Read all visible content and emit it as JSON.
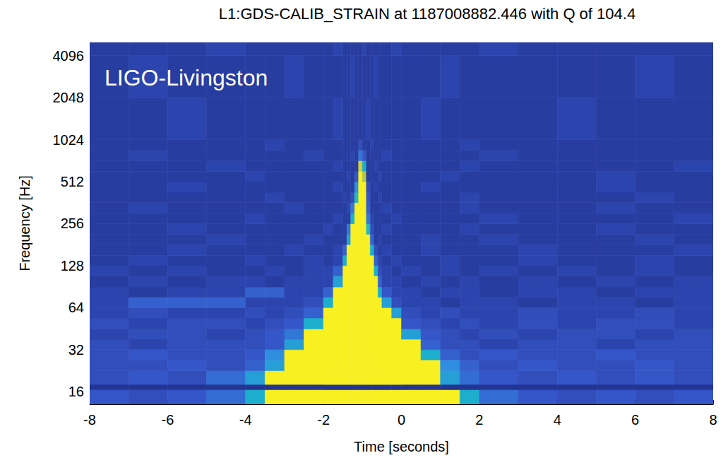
{
  "chart_data": {
    "type": "heatmap",
    "title": "L1:GDS-CALIB_STRAIN at 1187008882.446 with Q of 104.4",
    "annotations": [
      {
        "text": "LIGO-Livingston"
      }
    ],
    "x_label": "Time [seconds]",
    "y_label": "Frequency [Hz]",
    "xlim": [
      -8,
      8
    ],
    "xticks": [
      -8,
      -6,
      -4,
      -2,
      0,
      2,
      4,
      6,
      8
    ],
    "ylim": [
      13,
      5100
    ],
    "yticks": [
      16,
      32,
      64,
      128,
      256,
      512,
      1024,
      2048,
      4096
    ],
    "log": "y",
    "grid": false,
    "color_range": [
      0,
      30
    ],
    "cells": {
      "x_edges": [
        -8,
        -7,
        -6,
        -5,
        -4,
        -3.5,
        -3,
        -2.5,
        -2,
        -1.75,
        -1.5,
        -1.4,
        -1.3,
        -1.2,
        -1.1,
        -1.0,
        -0.9,
        -0.8,
        -0.7,
        -0.6,
        -0.5,
        -0.25,
        0,
        0.5,
        1,
        1.5,
        2,
        3,
        4,
        5,
        6,
        7,
        8
      ],
      "y_edges": [
        13,
        16.5,
        18,
        22.6,
        27,
        32,
        38,
        45,
        54,
        64,
        76,
        90,
        108,
        128,
        152,
        181,
        215,
        256,
        304,
        362,
        430,
        512,
        609,
        724,
        861,
        1024,
        2048,
        4096,
        5100
      ],
      "values": [
        [
          5,
          4,
          5,
          7,
          14,
          30,
          30,
          30,
          30,
          30,
          30,
          30,
          30,
          30,
          30,
          30,
          30,
          30,
          30,
          30,
          30,
          30,
          30,
          30,
          30,
          14,
          7,
          5,
          4,
          5,
          4,
          5
        ],
        [
          1,
          1,
          1,
          1,
          1,
          1,
          1,
          1,
          1,
          1,
          1,
          1,
          1,
          1,
          1,
          1,
          1,
          1,
          1,
          1,
          1,
          1,
          1,
          1,
          1,
          1,
          1,
          1,
          1,
          1,
          1,
          1
        ],
        [
          4,
          5,
          4,
          7,
          12,
          30,
          30,
          30,
          30,
          30,
          30,
          30,
          30,
          30,
          30,
          30,
          30,
          30,
          30,
          30,
          30,
          30,
          30,
          30,
          12,
          7,
          5,
          4,
          5,
          4,
          5,
          4
        ],
        [
          4,
          4,
          5,
          4,
          6,
          12,
          30,
          30,
          30,
          30,
          30,
          30,
          30,
          30,
          30,
          30,
          30,
          30,
          30,
          30,
          30,
          30,
          30,
          30,
          10,
          6,
          4,
          5,
          4,
          4,
          5,
          4
        ],
        [
          4,
          5,
          4,
          4,
          5,
          10,
          30,
          30,
          30,
          30,
          30,
          30,
          30,
          30,
          30,
          30,
          30,
          30,
          30,
          30,
          30,
          30,
          30,
          14,
          6,
          4,
          5,
          4,
          4,
          5,
          4,
          4
        ],
        [
          4,
          3,
          4,
          4,
          4,
          5,
          12,
          30,
          30,
          30,
          30,
          30,
          30,
          30,
          30,
          30,
          30,
          30,
          30,
          30,
          30,
          30,
          30,
          6,
          4,
          4,
          3,
          4,
          4,
          3,
          4,
          4
        ],
        [
          3,
          4,
          4,
          3,
          4,
          5,
          8,
          30,
          30,
          30,
          30,
          30,
          30,
          30,
          30,
          30,
          30,
          30,
          30,
          30,
          30,
          30,
          12,
          5,
          4,
          3,
          4,
          3,
          4,
          4,
          3,
          4
        ],
        [
          4,
          3,
          4,
          4,
          3,
          4,
          5,
          14,
          30,
          30,
          30,
          30,
          30,
          30,
          30,
          30,
          30,
          30,
          30,
          30,
          30,
          30,
          5,
          4,
          3,
          4,
          3,
          4,
          3,
          4,
          4,
          3
        ],
        [
          3,
          4,
          3,
          3,
          4,
          3,
          4,
          6,
          30,
          30,
          30,
          30,
          30,
          30,
          30,
          30,
          30,
          30,
          30,
          30,
          30,
          12,
          4,
          3,
          4,
          3,
          3,
          4,
          3,
          3,
          4,
          3
        ],
        [
          3,
          6,
          6,
          6,
          3,
          3,
          3,
          4,
          14,
          30,
          30,
          30,
          30,
          30,
          30,
          30,
          30,
          30,
          30,
          30,
          12,
          4,
          3,
          3,
          2,
          3,
          3,
          2,
          3,
          3,
          2,
          3
        ],
        [
          3,
          2,
          3,
          3,
          6,
          6,
          3,
          3,
          6,
          30,
          30,
          30,
          30,
          30,
          30,
          30,
          30,
          30,
          30,
          14,
          5,
          3,
          3,
          2,
          3,
          3,
          2,
          3,
          3,
          2,
          3,
          3
        ],
        [
          2,
          3,
          2,
          3,
          3,
          2,
          3,
          3,
          3,
          12,
          30,
          30,
          30,
          30,
          30,
          30,
          30,
          30,
          30,
          6,
          3,
          3,
          2,
          3,
          2,
          3,
          2,
          3,
          2,
          3,
          2,
          3
        ],
        [
          3,
          2,
          3,
          2,
          2,
          3,
          2,
          3,
          3,
          6,
          30,
          30,
          30,
          30,
          30,
          30,
          30,
          30,
          14,
          4,
          3,
          2,
          3,
          2,
          3,
          2,
          3,
          2,
          3,
          2,
          3,
          2
        ],
        [
          2,
          3,
          2,
          2,
          3,
          2,
          2,
          3,
          2,
          3,
          14,
          30,
          30,
          30,
          30,
          30,
          30,
          30,
          6,
          3,
          2,
          3,
          2,
          2,
          3,
          2,
          2,
          3,
          2,
          2,
          3,
          2
        ],
        [
          2,
          2,
          3,
          2,
          2,
          2,
          3,
          2,
          2,
          3,
          6,
          30,
          30,
          30,
          30,
          30,
          30,
          14,
          4,
          2,
          3,
          2,
          2,
          3,
          2,
          2,
          2,
          3,
          2,
          2,
          2,
          3
        ],
        [
          2,
          2,
          2,
          3,
          2,
          2,
          2,
          3,
          2,
          2,
          2,
          12,
          30,
          30,
          30,
          30,
          30,
          6,
          2,
          3,
          2,
          2,
          2,
          3,
          2,
          2,
          3,
          2,
          2,
          2,
          3,
          2
        ],
        [
          2,
          2,
          3,
          2,
          2,
          2,
          2,
          2,
          3,
          2,
          2,
          8,
          30,
          30,
          30,
          30,
          16,
          4,
          2,
          2,
          3,
          2,
          2,
          2,
          2,
          3,
          2,
          2,
          2,
          3,
          2,
          2
        ],
        [
          2,
          2,
          2,
          2,
          3,
          2,
          2,
          2,
          2,
          3,
          2,
          2,
          14,
          30,
          30,
          30,
          8,
          3,
          2,
          2,
          2,
          3,
          2,
          2,
          2,
          2,
          3,
          2,
          2,
          2,
          2,
          3
        ],
        [
          2,
          3,
          2,
          2,
          2,
          2,
          3,
          2,
          2,
          2,
          2,
          3,
          8,
          30,
          30,
          30,
          6,
          2,
          2,
          2,
          3,
          2,
          2,
          2,
          2,
          3,
          2,
          2,
          2,
          3,
          2,
          2
        ],
        [
          2,
          2,
          2,
          2,
          2,
          3,
          2,
          2,
          2,
          2,
          3,
          2,
          4,
          16,
          30,
          30,
          5,
          2,
          2,
          3,
          2,
          2,
          2,
          2,
          2,
          3,
          2,
          2,
          2,
          2,
          3,
          2
        ],
        [
          2,
          2,
          3,
          2,
          2,
          2,
          2,
          2,
          2,
          3,
          2,
          2,
          2,
          10,
          30,
          30,
          4,
          2,
          3,
          2,
          2,
          2,
          2,
          3,
          2,
          2,
          2,
          2,
          2,
          3,
          2,
          2
        ],
        [
          2,
          2,
          2,
          2,
          3,
          2,
          2,
          2,
          2,
          2,
          2,
          3,
          2,
          5,
          30,
          24,
          2,
          2,
          2,
          3,
          2,
          2,
          2,
          2,
          3,
          2,
          2,
          2,
          2,
          3,
          2,
          2
        ],
        [
          2,
          2,
          2,
          3,
          2,
          2,
          2,
          2,
          2,
          3,
          2,
          2,
          2,
          2,
          26,
          14,
          2,
          2,
          3,
          2,
          2,
          2,
          2,
          2,
          2,
          3,
          2,
          2,
          2,
          2,
          2,
          3
        ],
        [
          2,
          3,
          2,
          2,
          2,
          2,
          2,
          3,
          2,
          2,
          2,
          2,
          3,
          2,
          8,
          5,
          2,
          2,
          2,
          2,
          3,
          2,
          2,
          2,
          2,
          2,
          3,
          2,
          2,
          2,
          2,
          2
        ],
        [
          2,
          2,
          2,
          2,
          2,
          3,
          2,
          2,
          2,
          2,
          2,
          2,
          2,
          2,
          4,
          2,
          2,
          3,
          2,
          2,
          2,
          2,
          2,
          2,
          2,
          3,
          2,
          2,
          2,
          2,
          2,
          2
        ],
        [
          2,
          2,
          3,
          2,
          2,
          2,
          2,
          2,
          2,
          3,
          2,
          2,
          2,
          2,
          2,
          2,
          3,
          2,
          2,
          2,
          2,
          2,
          2,
          3,
          2,
          2,
          2,
          2,
          3,
          2,
          2,
          2
        ],
        [
          2,
          3,
          2,
          2,
          2,
          2,
          3,
          2,
          2,
          2,
          2,
          2,
          3,
          2,
          2,
          2,
          2,
          2,
          3,
          2,
          2,
          2,
          2,
          2,
          3,
          2,
          2,
          2,
          2,
          2,
          3,
          2
        ],
        [
          2,
          2,
          2,
          3,
          2,
          2,
          2,
          2,
          2,
          3,
          2,
          2,
          2,
          2,
          2,
          3,
          2,
          2,
          2,
          2,
          2,
          3,
          2,
          2,
          2,
          2,
          3,
          2,
          2,
          2,
          2,
          2
        ]
      ]
    }
  }
}
